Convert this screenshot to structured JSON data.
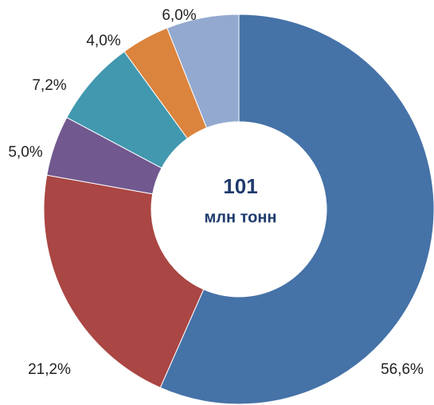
{
  "chart_data": {
    "type": "donut",
    "center_value": "101",
    "center_unit": "млн тонн",
    "values": [
      56.6,
      21.2,
      5.0,
      7.2,
      4.0,
      6.0
    ],
    "value_labels": [
      "56,6%",
      "21,2%",
      "5,0%",
      "7,2%",
      "4,0%",
      "6,0%"
    ],
    "colors": [
      "#4572a7",
      "#aa4643",
      "#71588f",
      "#4198af",
      "#db843d",
      "#93a9cf"
    ]
  }
}
